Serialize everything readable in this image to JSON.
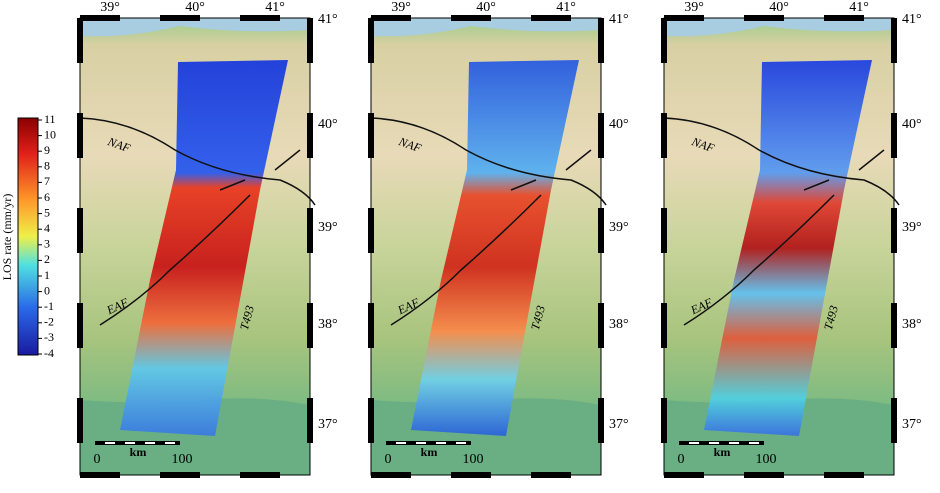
{
  "colorbar": {
    "label": "LOS rate (mm/yr)",
    "ticks": [
      11,
      10,
      9,
      8,
      7,
      6,
      5,
      4,
      3,
      2,
      1,
      0,
      -1,
      -2,
      -3,
      -4
    ],
    "range": [
      -4,
      11
    ]
  },
  "panels": [
    {
      "lon_labels": [
        "39°",
        "40°",
        "41°"
      ],
      "lat_labels": [
        "41°",
        "40°",
        "39°",
        "38°",
        "37°"
      ],
      "faults": [
        "NAF",
        "EAF"
      ],
      "track": "T493",
      "scale_bar": {
        "start": 0,
        "unit": "km",
        "end": 100
      }
    },
    {
      "lon_labels": [
        "39°",
        "40°",
        "41°"
      ],
      "lat_labels": [
        "41°",
        "40°",
        "39°",
        "38°",
        "37°"
      ],
      "faults": [
        "NAF",
        "EAF"
      ],
      "track": "T493",
      "scale_bar": {
        "start": 0,
        "unit": "km",
        "end": 100
      }
    },
    {
      "lon_labels": [
        "39°",
        "40°",
        "41°"
      ],
      "lat_labels": [
        "41°",
        "40°",
        "39°",
        "38°",
        "37°"
      ],
      "faults": [
        "NAF",
        "EAF"
      ],
      "track": "T493",
      "scale_bar": {
        "start": 0,
        "unit": "km",
        "end": 100
      }
    }
  ]
}
